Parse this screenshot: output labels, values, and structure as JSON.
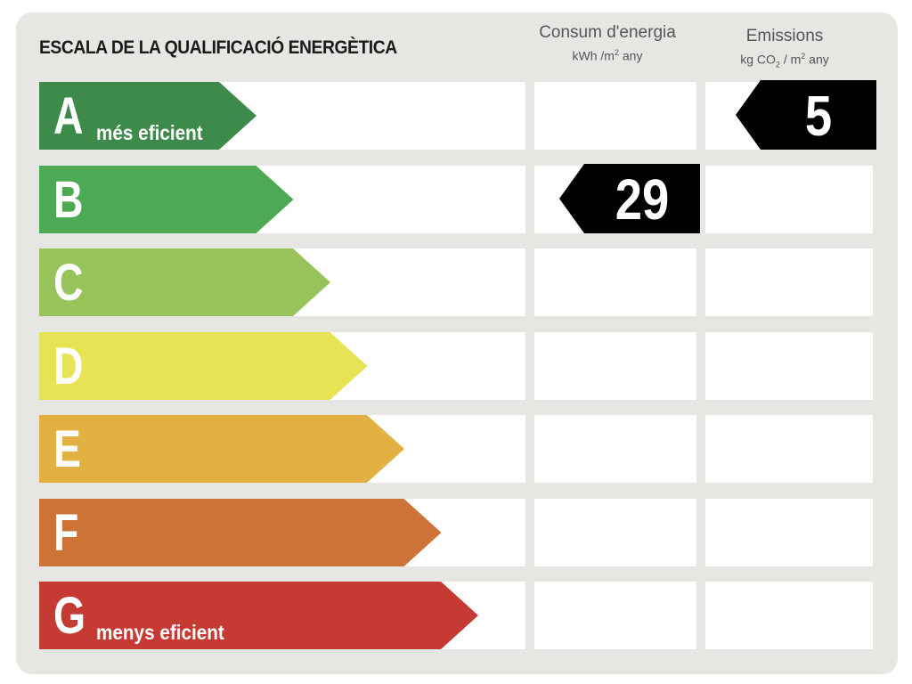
{
  "chart_data": {
    "type": "bar",
    "title": "ESCALA DE LA QUALIFICACIÓ ENERGÈTICA",
    "categories": [
      "A",
      "B",
      "C",
      "D",
      "E",
      "F",
      "G"
    ],
    "annotations": {
      "top": "més eficient",
      "bottom": "menys eficient"
    },
    "columns": [
      {
        "title": "Consum d'energia",
        "unit_prefix": "kWh /m",
        "unit_sup": "2",
        "unit_suffix": " any"
      },
      {
        "title": "Emissions",
        "unit_prefix": "kg CO",
        "unit_sub": "2",
        "unit_mid": " / m",
        "unit_sup": "2",
        "unit_suffix": " any"
      }
    ],
    "series": [
      {
        "name": "Consum d'energia",
        "category": "B",
        "value": 29
      },
      {
        "name": "Emissions",
        "category": "A",
        "value": 5
      }
    ],
    "class_colors": [
      "#3d8a4a",
      "#4daa54",
      "#98c25a",
      "#e6e455",
      "#e2b142",
      "#cd7338",
      "#c53b34"
    ],
    "marker_color": "#000000"
  }
}
